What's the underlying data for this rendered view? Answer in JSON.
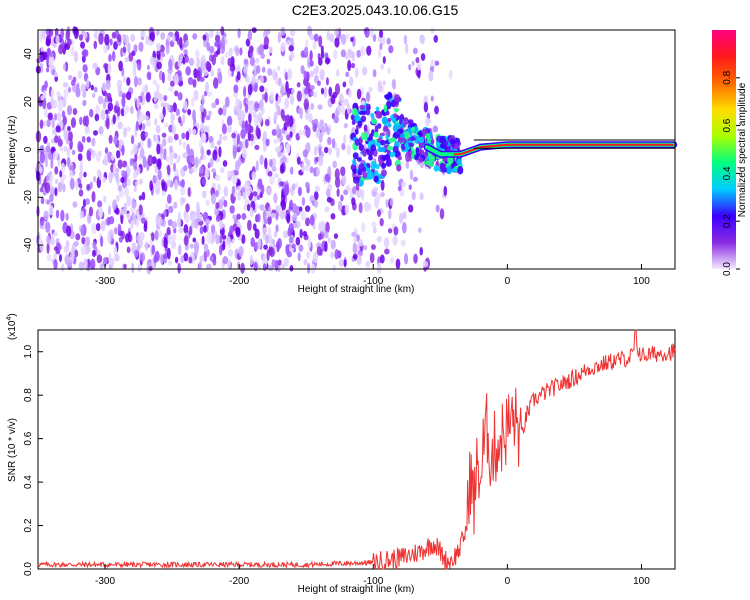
{
  "title": "C2E3.2025.043.10.06.G15",
  "chart_data": [
    {
      "type": "heatmap",
      "xlabel": "Height of straight line (km)",
      "ylabel": "Frequency (Hz)",
      "xlim": [
        -350,
        125
      ],
      "ylim": [
        -50,
        50
      ],
      "xticks": [
        "-300",
        "-200",
        "-100",
        "0",
        "100"
      ],
      "yticks": [
        "-40",
        "-20",
        "0",
        "20",
        "40"
      ],
      "colorbar": {
        "label": "Normalized spectral amplitude",
        "range": [
          0,
          1
        ],
        "ticks": [
          "0.0",
          "0.2",
          "0.4",
          "0.6",
          "0.8"
        ],
        "colors": [
          "#f3eaff",
          "#8a2be2",
          "#3a00ff",
          "#00ccff",
          "#00ff80",
          "#aaff00",
          "#ffdd00",
          "#ff6a00",
          "#ff1a1a",
          "#ff0080"
        ]
      },
      "ridge": [
        {
          "x": -90,
          "y": 10
        },
        {
          "x": -70,
          "y": 4
        },
        {
          "x": -50,
          "y": -2
        },
        {
          "x": -35,
          "y": -2
        },
        {
          "x": -20,
          "y": 1
        },
        {
          "x": 0,
          "y": 2
        },
        {
          "x": 50,
          "y": 2
        },
        {
          "x": 100,
          "y": 2
        },
        {
          "x": 125,
          "y": 2
        }
      ],
      "grid": false
    },
    {
      "type": "line",
      "xlabel": "Height of straight line (km)",
      "ylabel": "SNR (10 * v/v)",
      "y_multiplier": "(x10",
      "y_multiplier_exp": "4",
      "y_multiplier_close": ")",
      "xlim": [
        -350,
        125
      ],
      "ylim": [
        0,
        1.1
      ],
      "xticks": [
        "-300",
        "-200",
        "-100",
        "0",
        "100"
      ],
      "yticks": [
        "0.0",
        "0.2",
        "0.4",
        "0.6",
        "0.8",
        "1.0"
      ],
      "series_color": "#ee3333",
      "series": [
        {
          "x": [
            -350,
            -250,
            -150,
            -100,
            -80,
            -65,
            -55,
            -50,
            -45,
            -40,
            -35,
            -30,
            -28,
            -25,
            -22,
            -20,
            -18,
            -15,
            -12,
            -10,
            -5,
            0,
            5,
            10,
            15,
            20,
            25,
            30,
            40,
            50,
            60,
            70,
            80,
            90,
            95,
            97,
            100,
            110,
            125
          ],
          "y": [
            0.02,
            0.02,
            0.02,
            0.03,
            0.05,
            0.08,
            0.12,
            0.08,
            0.03,
            0.05,
            0.1,
            0.2,
            0.45,
            0.3,
            0.5,
            0.4,
            0.55,
            0.65,
            0.5,
            0.55,
            0.6,
            0.65,
            0.7,
            0.6,
            0.72,
            0.78,
            0.8,
            0.82,
            0.85,
            0.88,
            0.92,
            0.94,
            0.96,
            0.97,
            0.99,
            1.02,
            0.98,
            0.99,
            1.0
          ]
        }
      ],
      "grid": false
    }
  ]
}
